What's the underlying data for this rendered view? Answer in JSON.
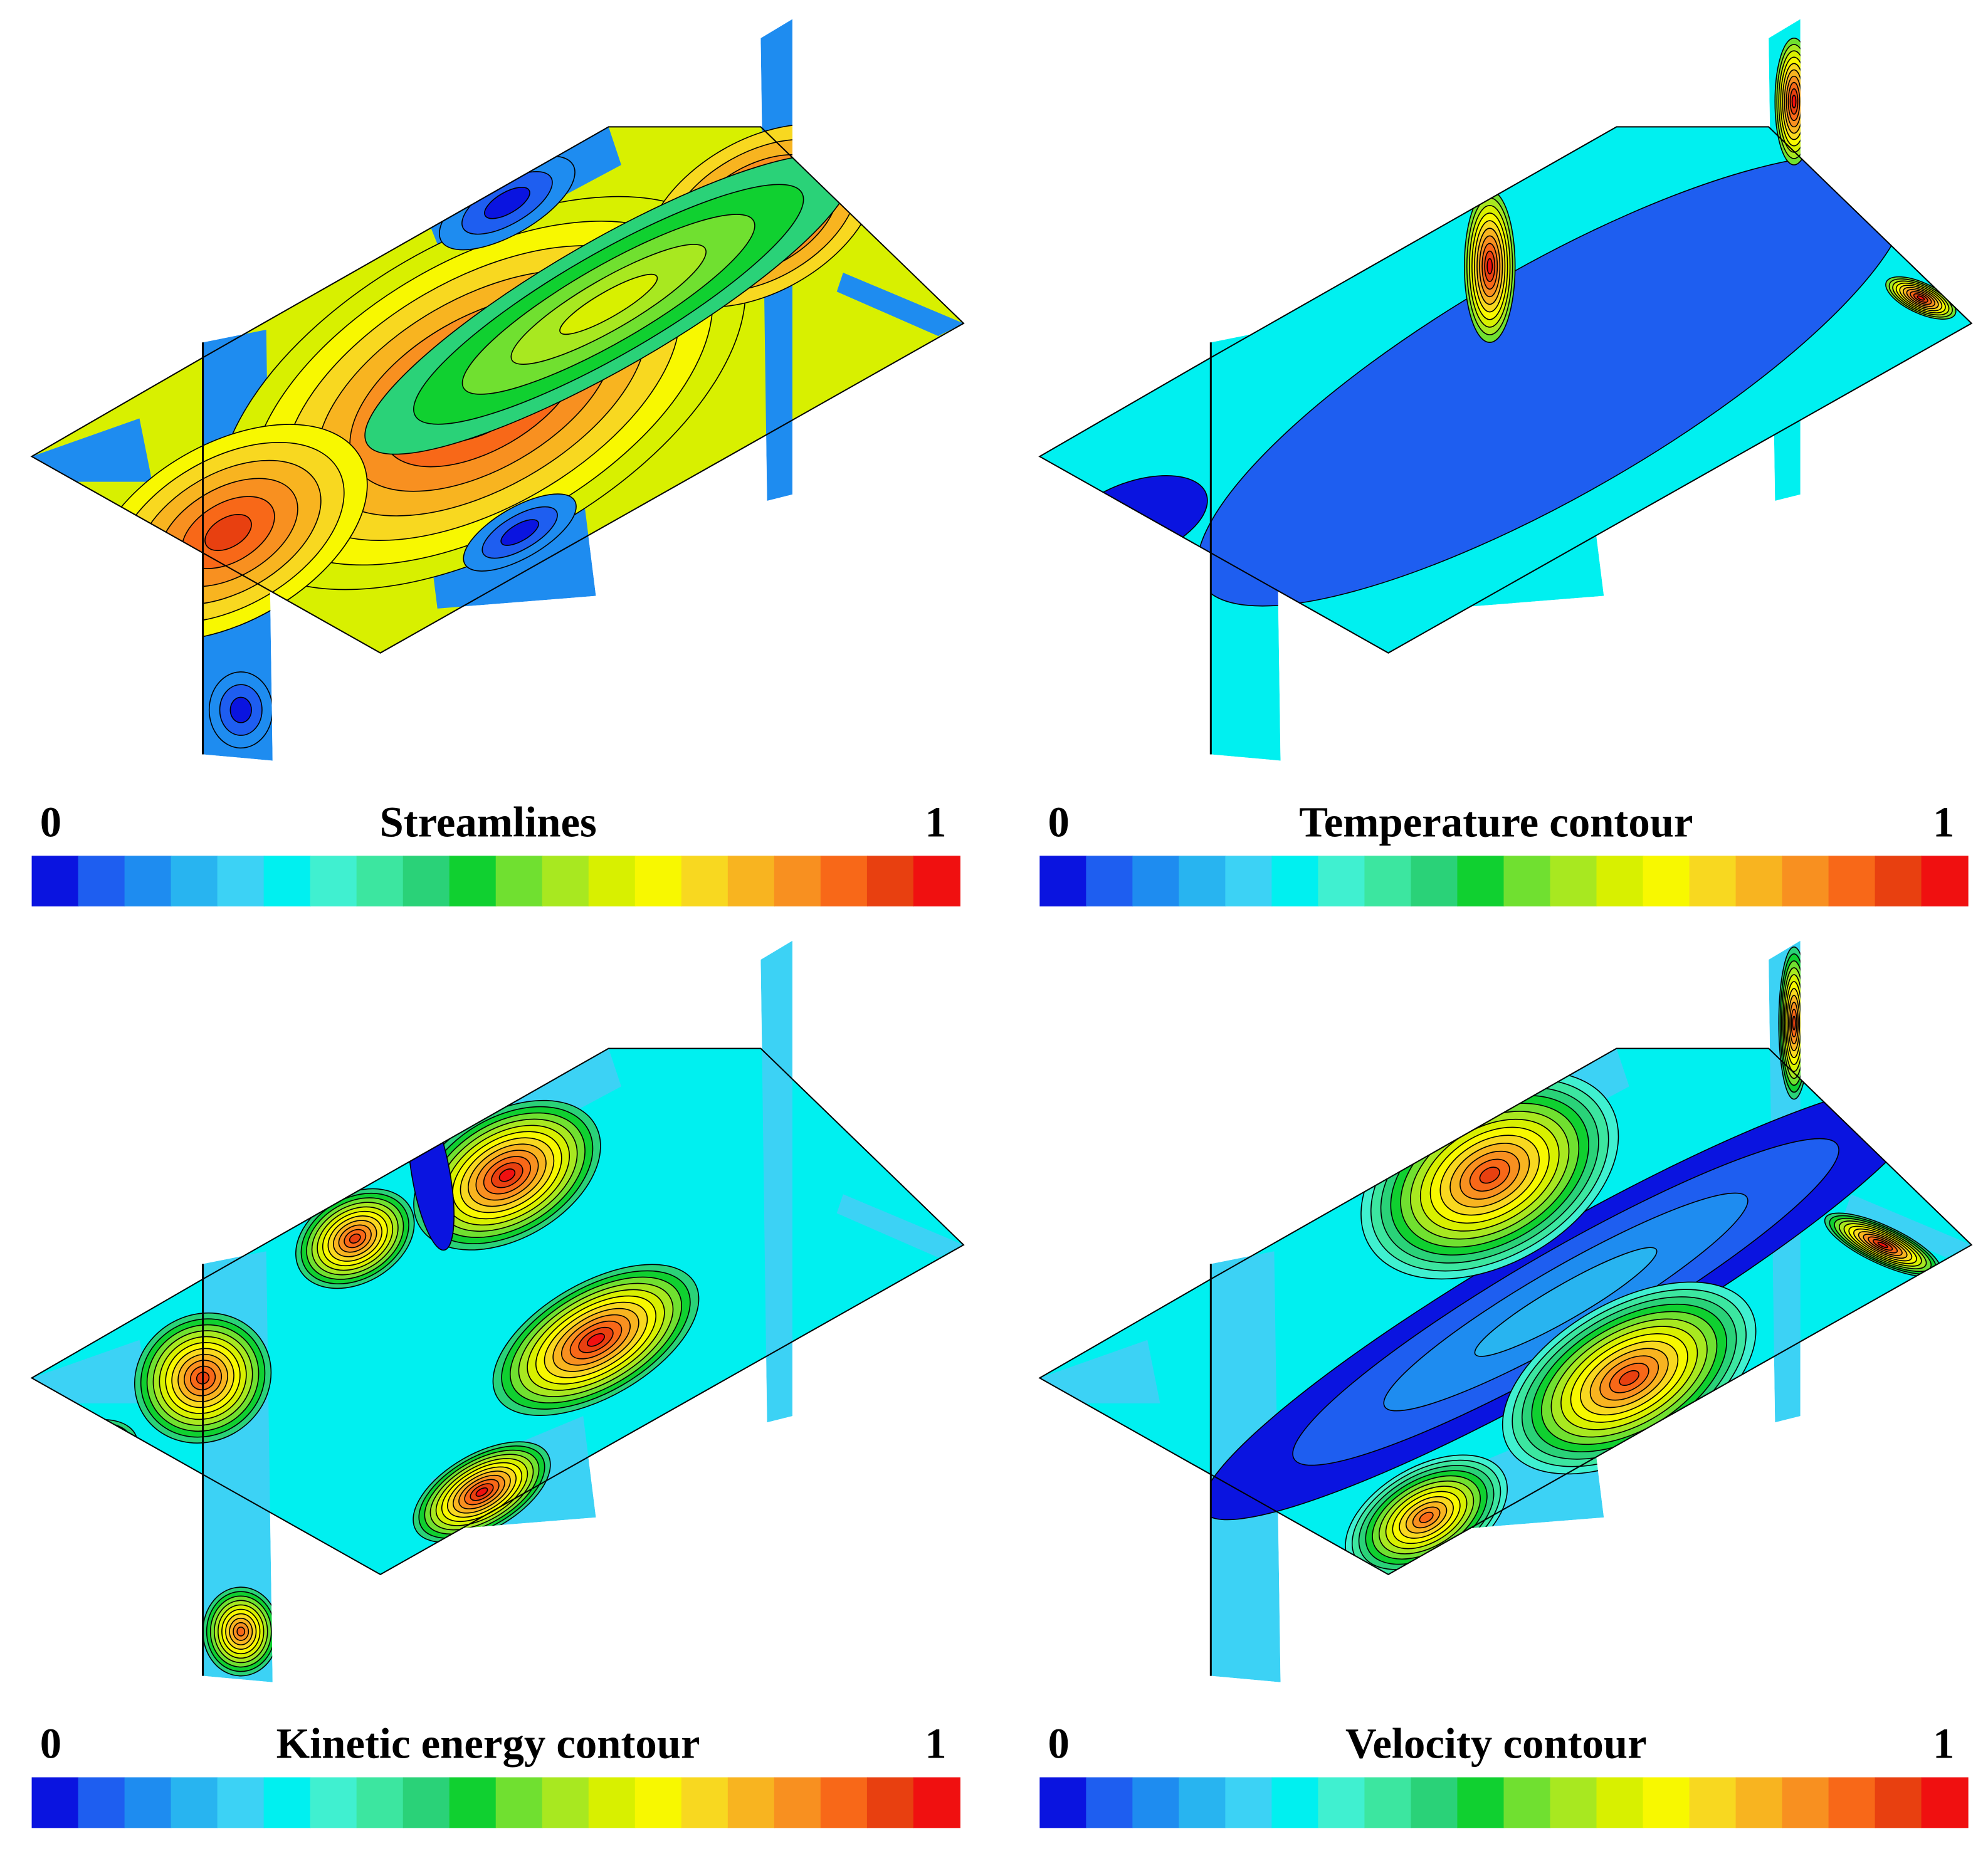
{
  "panels": [
    {
      "title": "Streamlines",
      "min_label": "0",
      "max_label": "1"
    },
    {
      "title": "Temperature contour",
      "min_label": "0",
      "max_label": "1"
    },
    {
      "title": "Kinetic energy contour",
      "min_label": "0",
      "max_label": "1"
    },
    {
      "title": "Velocity contour",
      "min_label": "0",
      "max_label": "1"
    }
  ],
  "colormap": [
    "#0a14e0",
    "#1e5ef0",
    "#1e8cf0",
    "#28b4f0",
    "#3cd2f5",
    "#00f0f0",
    "#40f0d0",
    "#3ce6a0",
    "#2ad278",
    "#10d030",
    "#70e030",
    "#a8e820",
    "#d8f000",
    "#f8f800",
    "#f8d820",
    "#f8b420",
    "#f89020",
    "#f86818",
    "#e84010",
    "#f01010"
  ]
}
